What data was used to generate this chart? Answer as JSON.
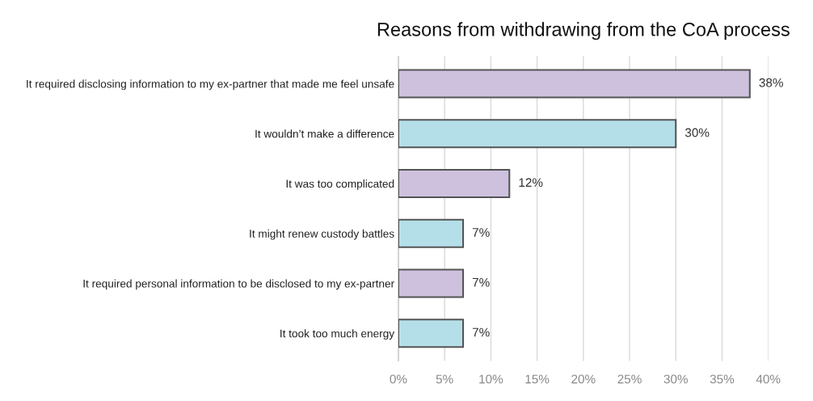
{
  "chart_data": {
    "type": "bar",
    "orientation": "horizontal",
    "title": "Reasons from withdrawing from the CoA process",
    "categories": [
      "It required disclosing information to my ex-partner that made me feel unsafe",
      "It wouldn’t make a difference",
      "It was too complicated",
      "It might renew custody battles",
      "It required personal information to be disclosed to my ex-partner",
      "It took too much energy"
    ],
    "values": [
      38,
      30,
      12,
      7,
      7,
      7
    ],
    "colors": [
      "#cdc1de",
      "#b5dfe8",
      "#cdc1de",
      "#b5dfe8",
      "#cdc1de",
      "#b5dfe8"
    ],
    "value_labels": [
      "38%",
      "30%",
      "12%",
      "7%",
      "7%",
      "7%"
    ],
    "xlim": [
      0,
      40
    ],
    "xticks": [
      {
        "value": 0,
        "label": "0%"
      },
      {
        "value": 5,
        "label": "5%"
      },
      {
        "value": 10,
        "label": "10%"
      },
      {
        "value": 15,
        "label": "15%"
      },
      {
        "value": 20,
        "label": "20%"
      },
      {
        "value": 25,
        "label": "25%"
      },
      {
        "value": 30,
        "label": "30%"
      },
      {
        "value": 35,
        "label": "35%"
      },
      {
        "value": 40,
        "label": "40%"
      }
    ],
    "grid": "x"
  }
}
